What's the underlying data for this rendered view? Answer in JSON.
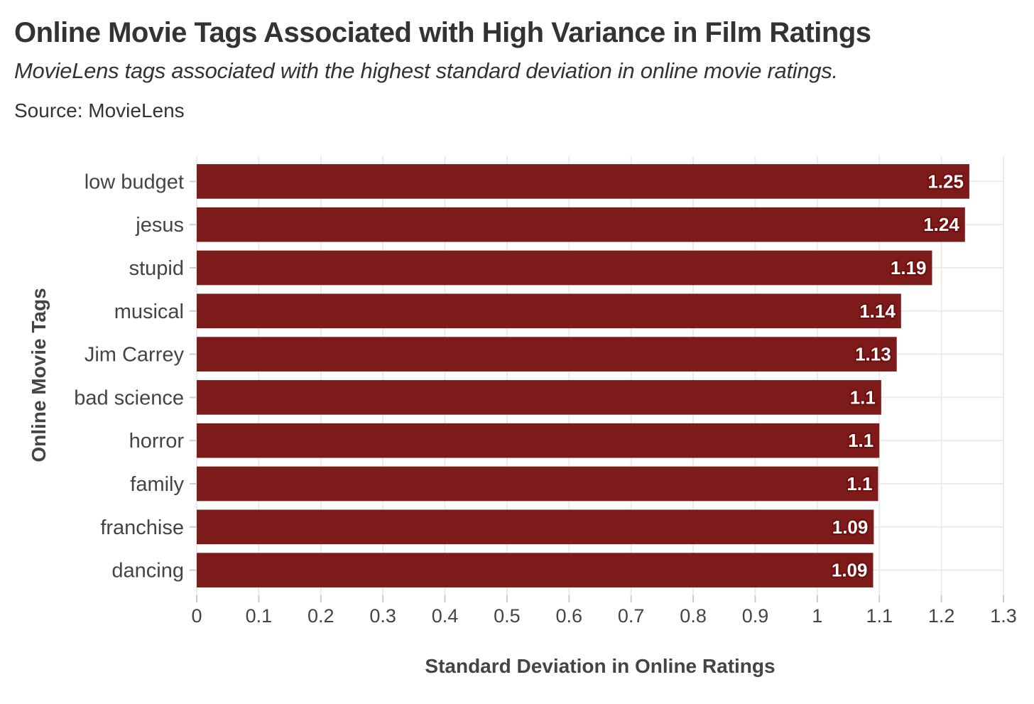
{
  "chart_data": {
    "type": "bar",
    "orientation": "horizontal",
    "title": "Online Movie Tags Associated with High Variance in Film Ratings",
    "subtitle": "MovieLens tags associated with the highest standard deviation in online movie ratings.",
    "source": "Source: MovieLens",
    "xlabel": "Standard Deviation in Online Ratings",
    "ylabel": "Online Movie Tags",
    "xlim": [
      0,
      1.3
    ],
    "x_ticks": [
      "0",
      "0.1",
      "0.2",
      "0.3",
      "0.4",
      "0.5",
      "0.6",
      "0.7",
      "0.8",
      "0.9",
      "1",
      "1.1",
      "1.2",
      "1.3"
    ],
    "grid": "vertical",
    "bar_color": "#7d1a1a",
    "categories": [
      "low budget",
      "jesus",
      "stupid",
      "musical",
      "Jim Carrey",
      "bad science",
      "horror",
      "family",
      "franchise",
      "dancing"
    ],
    "values": [
      1.245,
      1.238,
      1.185,
      1.135,
      1.128,
      1.103,
      1.1,
      1.098,
      1.091,
      1.09
    ],
    "data_labels": [
      "1.25",
      "1.24",
      "1.19",
      "1.14",
      "1.13",
      "1.1",
      "1.1",
      "1.1",
      "1.09",
      "1.09"
    ]
  }
}
